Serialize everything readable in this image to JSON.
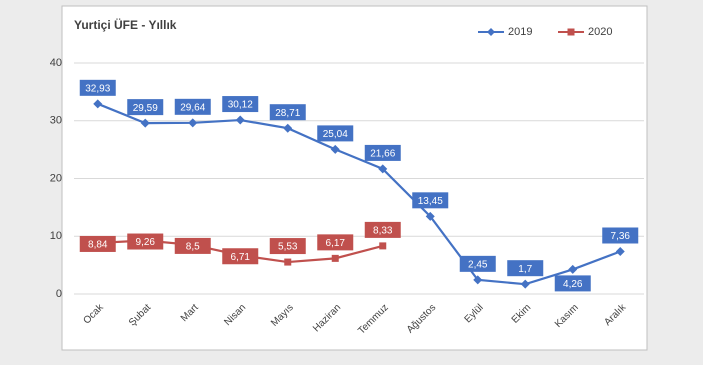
{
  "chart_data": {
    "type": "line",
    "title": "Yurtiçi ÜFE - Yıllık",
    "categories": [
      "Ocak",
      "Şubat",
      "Mart",
      "Nisan",
      "Mayıs",
      "Haziran",
      "Temmuz",
      "Ağustos",
      "Eylül",
      "Ekim",
      "Kasım",
      "Aralık"
    ],
    "series": [
      {
        "name": "2019",
        "color": "#4472c4",
        "marker": "diamond",
        "values": [
          32.93,
          29.59,
          29.64,
          30.12,
          28.71,
          25.04,
          21.66,
          13.45,
          2.45,
          1.7,
          4.26,
          7.36
        ],
        "value_labels": [
          "32,93",
          "29,59",
          "29,64",
          "30,12",
          "28,71",
          "25,04",
          "21,66",
          "13,45",
          "2,45",
          "1,7",
          "4,26",
          "7,36"
        ]
      },
      {
        "name": "2020",
        "color": "#c0504d",
        "marker": "square",
        "values": [
          8.84,
          9.26,
          8.5,
          6.71,
          5.53,
          6.17,
          8.33,
          null,
          null,
          null,
          null,
          null
        ],
        "value_labels": [
          "8,84",
          "9,26",
          "8,5",
          "6,71",
          "5,53",
          "6,17",
          "8,33",
          null,
          null,
          null,
          null,
          null
        ]
      }
    ],
    "ylim": [
      0,
      40
    ],
    "yticks": [
      0,
      10,
      20,
      30,
      40
    ],
    "grid": true,
    "legend": "top-right"
  }
}
